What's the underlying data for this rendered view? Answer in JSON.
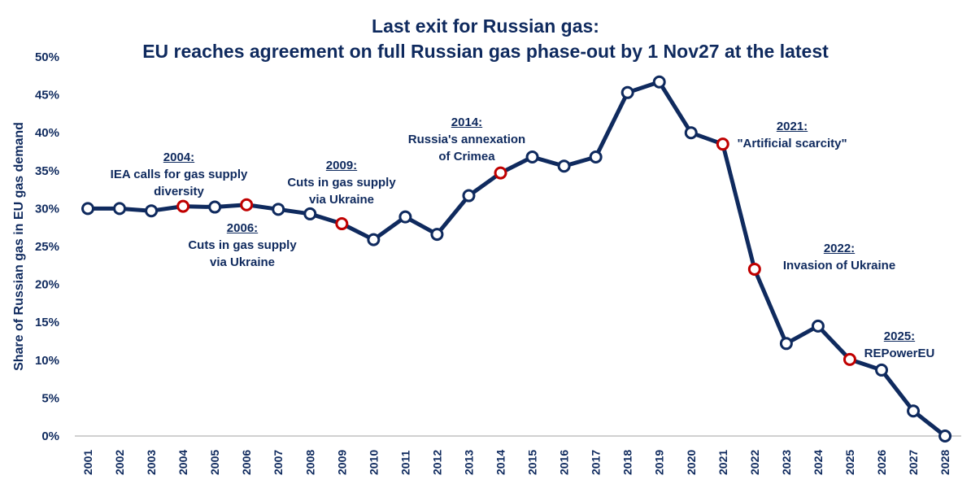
{
  "chart_data": {
    "type": "line",
    "title": [
      "Last exit for Russian gas:",
      "EU reaches agreement on full Russian gas phase-out by 1 Nov27 at the latest"
    ],
    "xlabel": "",
    "ylabel": "Share of Russian gas in EU gas demand",
    "ylim": [
      0,
      50
    ],
    "yticks": [
      "0%",
      "5%",
      "10%",
      "15%",
      "20%",
      "25%",
      "30%",
      "35%",
      "40%",
      "45%",
      "50%"
    ],
    "grid": false,
    "categories": [
      "2001",
      "2002",
      "2003",
      "2004",
      "2005",
      "2006",
      "2007",
      "2008",
      "2009",
      "2010",
      "2011",
      "2012",
      "2013",
      "2014",
      "2015",
      "2016",
      "2017",
      "2018",
      "2019",
      "2020",
      "2021",
      "2022",
      "2023",
      "2024",
      "2025",
      "2026",
      "2027",
      "2028"
    ],
    "values": [
      30.0,
      30.0,
      29.7,
      30.3,
      30.2,
      30.5,
      29.9,
      29.3,
      28.0,
      25.9,
      28.9,
      26.6,
      31.7,
      34.7,
      36.8,
      35.6,
      36.8,
      45.3,
      46.7,
      40.0,
      38.5,
      22.0,
      12.2,
      14.5,
      10.1,
      8.7,
      3.3,
      0.0
    ],
    "highlighted": [
      "2004",
      "2006",
      "2009",
      "2014",
      "2021",
      "2022",
      "2025"
    ],
    "colors": {
      "line": "#0f2a5e",
      "marker_fill": "#ffffff",
      "highlight": "#c00000",
      "axis": "#d0d0d0"
    },
    "annotations": [
      {
        "year": "2004:",
        "lines": [
          "IEA calls for gas supply",
          "diversity"
        ]
      },
      {
        "year": "2006:",
        "lines": [
          "Cuts in gas supply",
          "via Ukraine"
        ]
      },
      {
        "year": "2009:",
        "lines": [
          "Cuts in gas supply",
          "via Ukraine"
        ]
      },
      {
        "year": "2014:",
        "lines": [
          "Russia's annexation",
          "of Crimea"
        ]
      },
      {
        "year": "2021:",
        "lines": [
          "\"Artificial scarcity\""
        ]
      },
      {
        "year": "2022:",
        "lines": [
          "Invasion of Ukraine"
        ]
      },
      {
        "year": "2025:",
        "lines": [
          "REPowerEU"
        ]
      }
    ]
  }
}
